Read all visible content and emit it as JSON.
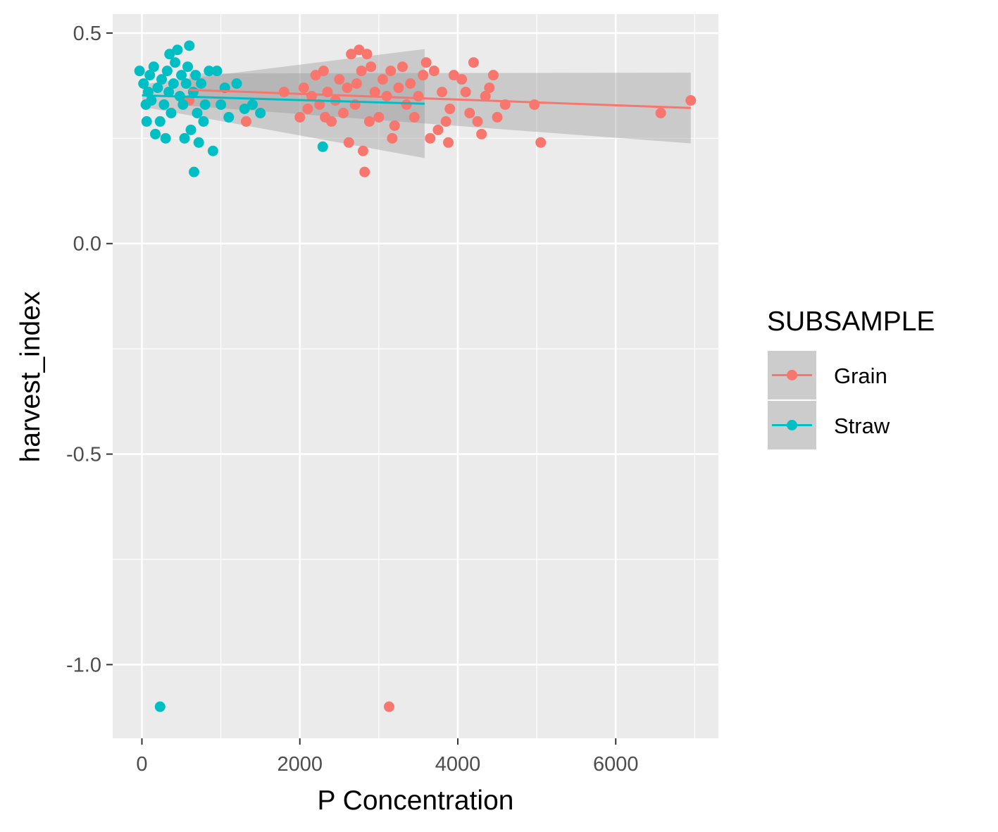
{
  "chart_data": {
    "type": "scatter",
    "title": "",
    "xlabel": "P Concentration",
    "ylabel": "harvest_index",
    "xlim": [
      -370,
      7300
    ],
    "ylim": [
      -1.175,
      0.545
    ],
    "x_ticks": [
      0,
      2000,
      4000,
      6000
    ],
    "x_tick_labels": [
      "0",
      "2000",
      "4000",
      "6000"
    ],
    "y_ticks": [
      0.5,
      0.0,
      -0.5,
      -1.0
    ],
    "y_tick_labels": [
      "0.5",
      "0.0",
      "-0.5",
      "-1.0"
    ],
    "grid": true,
    "panel_background": "#ebebeb",
    "legend": {
      "title": "SUBSAMPLE",
      "position": "right"
    },
    "series": [
      {
        "name": "Grain",
        "color": "#f8766d",
        "points": [
          [
            600,
            0.34
          ],
          [
            1320,
            0.29
          ],
          [
            1800,
            0.36
          ],
          [
            2000,
            0.3
          ],
          [
            2050,
            0.37
          ],
          [
            2100,
            0.32
          ],
          [
            2150,
            0.35
          ],
          [
            2200,
            0.4
          ],
          [
            2250,
            0.33
          ],
          [
            2300,
            0.41
          ],
          [
            2320,
            0.3
          ],
          [
            2350,
            0.36
          ],
          [
            2400,
            0.29
          ],
          [
            2450,
            0.34
          ],
          [
            2500,
            0.39
          ],
          [
            2550,
            0.31
          ],
          [
            2600,
            0.37
          ],
          [
            2620,
            0.24
          ],
          [
            2650,
            0.45
          ],
          [
            2700,
            0.33
          ],
          [
            2720,
            0.38
          ],
          [
            2750,
            0.46
          ],
          [
            2780,
            0.41
          ],
          [
            2800,
            0.22
          ],
          [
            2820,
            0.17
          ],
          [
            2850,
            0.45
          ],
          [
            2880,
            0.29
          ],
          [
            2900,
            0.42
          ],
          [
            2950,
            0.36
          ],
          [
            3000,
            0.3
          ],
          [
            3050,
            0.39
          ],
          [
            3100,
            0.35
          ],
          [
            3150,
            0.41
          ],
          [
            3170,
            0.25
          ],
          [
            3200,
            0.28
          ],
          [
            3250,
            0.37
          ],
          [
            3300,
            0.42
          ],
          [
            3350,
            0.33
          ],
          [
            3400,
            0.38
          ],
          [
            3450,
            0.3
          ],
          [
            3500,
            0.35
          ],
          [
            3560,
            0.4
          ],
          [
            3600,
            0.43
          ],
          [
            3650,
            0.25
          ],
          [
            3700,
            0.41
          ],
          [
            3750,
            0.27
          ],
          [
            3800,
            0.36
          ],
          [
            3850,
            0.29
          ],
          [
            3880,
            0.24
          ],
          [
            3900,
            0.32
          ],
          [
            3950,
            0.4
          ],
          [
            4050,
            0.39
          ],
          [
            4100,
            0.36
          ],
          [
            4150,
            0.31
          ],
          [
            4200,
            0.43
          ],
          [
            4250,
            0.29
          ],
          [
            4300,
            0.26
          ],
          [
            4350,
            0.35
          ],
          [
            4400,
            0.37
          ],
          [
            4450,
            0.4
          ],
          [
            4500,
            0.3
          ],
          [
            4600,
            0.33
          ],
          [
            4970,
            0.33
          ],
          [
            5050,
            0.24
          ],
          [
            6570,
            0.31
          ],
          [
            6950,
            0.34
          ],
          [
            3130,
            -1.1
          ]
        ],
        "trend": {
          "x": [
            600,
            6950
          ],
          "y": [
            0.365,
            0.322
          ],
          "ci_lower": [
            0.327,
            0.238
          ],
          "ci_upper": [
            0.404,
            0.406
          ]
        }
      },
      {
        "name": "Straw",
        "color": "#00bfc4",
        "points": [
          [
            -30,
            0.41
          ],
          [
            20,
            0.38
          ],
          [
            50,
            0.33
          ],
          [
            60,
            0.29
          ],
          [
            80,
            0.36
          ],
          [
            100,
            0.4
          ],
          [
            120,
            0.34
          ],
          [
            150,
            0.42
          ],
          [
            170,
            0.26
          ],
          [
            200,
            0.37
          ],
          [
            230,
            0.29
          ],
          [
            250,
            0.39
          ],
          [
            280,
            0.33
          ],
          [
            300,
            0.25
          ],
          [
            320,
            0.41
          ],
          [
            340,
            0.36
          ],
          [
            350,
            0.45
          ],
          [
            370,
            0.31
          ],
          [
            400,
            0.38
          ],
          [
            420,
            0.43
          ],
          [
            450,
            0.46
          ],
          [
            480,
            0.35
          ],
          [
            500,
            0.4
          ],
          [
            520,
            0.33
          ],
          [
            540,
            0.25
          ],
          [
            560,
            0.38
          ],
          [
            580,
            0.42
          ],
          [
            600,
            0.47
          ],
          [
            620,
            0.27
          ],
          [
            650,
            0.36
          ],
          [
            660,
            0.17
          ],
          [
            680,
            0.4
          ],
          [
            700,
            0.31
          ],
          [
            720,
            0.24
          ],
          [
            750,
            0.38
          ],
          [
            780,
            0.29
          ],
          [
            800,
            0.33
          ],
          [
            850,
            0.41
          ],
          [
            900,
            0.22
          ],
          [
            950,
            0.41
          ],
          [
            1000,
            0.33
          ],
          [
            1050,
            0.37
          ],
          [
            1100,
            0.3
          ],
          [
            1200,
            0.38
          ],
          [
            1300,
            0.32
          ],
          [
            1400,
            0.33
          ],
          [
            1500,
            0.31
          ],
          [
            2290,
            0.23
          ],
          [
            230,
            -1.1
          ]
        ],
        "trend": {
          "x": [
            0,
            3580
          ],
          "y": [
            0.352,
            0.332
          ],
          "ci_lower": [
            0.325,
            0.203
          ],
          "ci_upper": [
            0.378,
            0.462
          ]
        }
      }
    ]
  }
}
